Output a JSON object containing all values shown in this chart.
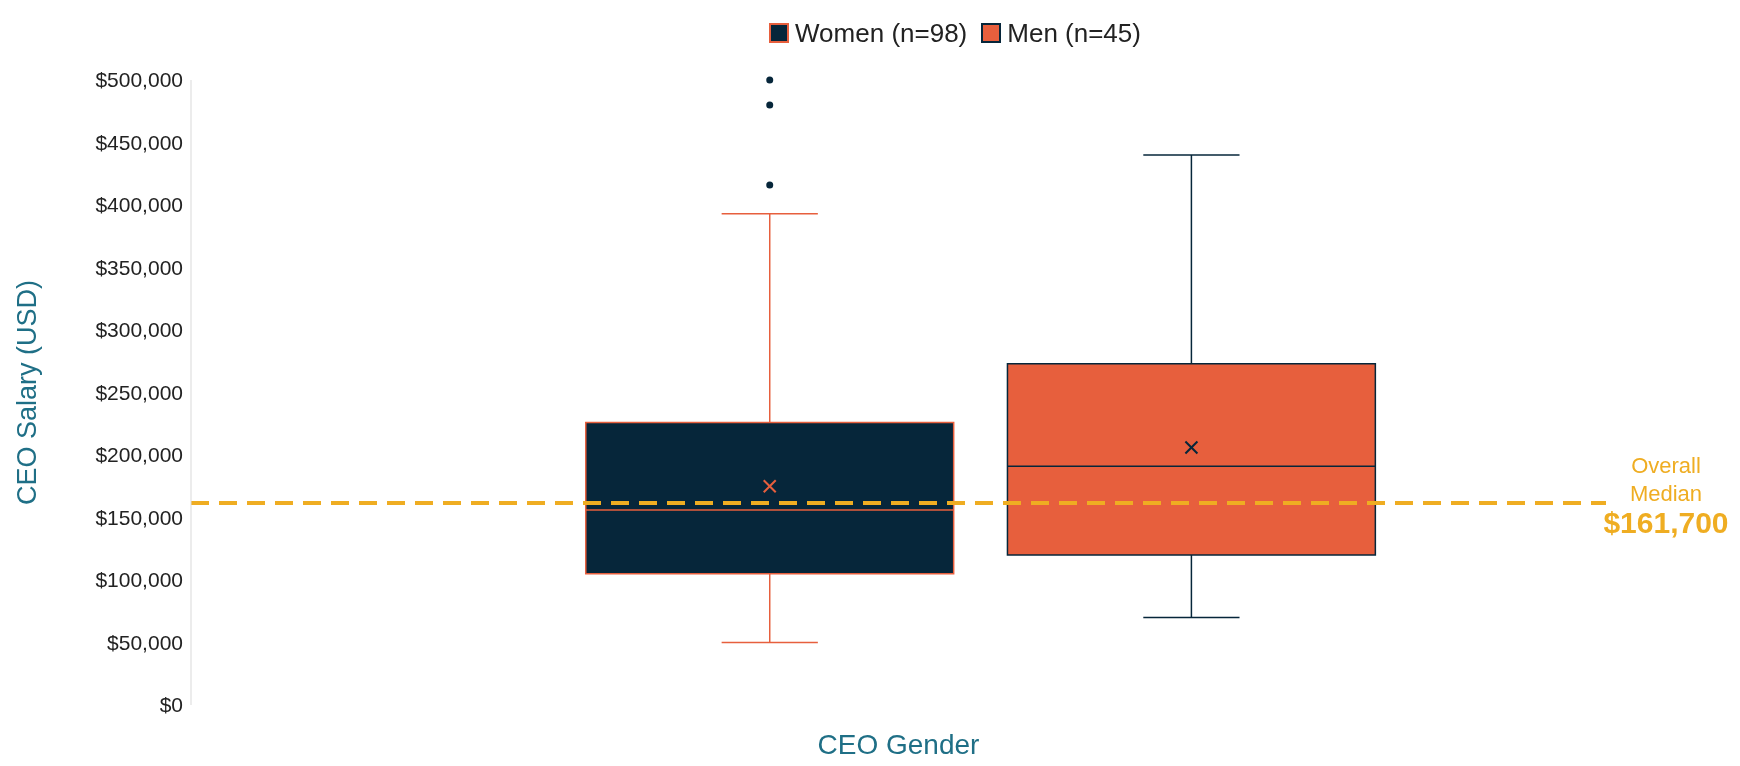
{
  "chart_data": {
    "type": "box",
    "xlabel": "CEO Gender",
    "ylabel": "CEO Salary (USD)",
    "categories": [
      null
    ],
    "series": [
      {
        "name": "Women (n=98)",
        "color": "#06263a",
        "boxes": [
          {
            "low": 50000,
            "q1": 105000,
            "median": 156000,
            "q3": 226000,
            "high": 393000,
            "mean": 175000,
            "outliers": [
              500000,
              480000,
              416000
            ]
          }
        ]
      },
      {
        "name": "Men (n=45)",
        "color": "#e75f3d",
        "boxes": [
          {
            "low": 70000,
            "q1": 120000,
            "median": 191000,
            "q3": 273000,
            "high": 440000,
            "mean": 206000
          }
        ]
      }
    ],
    "ylim": [
      0,
      500000
    ],
    "yticks": [
      {
        "value": 0,
        "label": "$0"
      },
      {
        "value": 50000,
        "label": "$50,000"
      },
      {
        "value": 100000,
        "label": "$100,000"
      },
      {
        "value": 150000,
        "label": "$150,000"
      },
      {
        "value": 200000,
        "label": "$200,000"
      },
      {
        "value": 250000,
        "label": "$250,000"
      },
      {
        "value": 300000,
        "label": "$300,000"
      },
      {
        "value": 350000,
        "label": "$350,000"
      },
      {
        "value": 400000,
        "label": "$400,000"
      },
      {
        "value": 450000,
        "label": "$450,000"
      },
      {
        "value": 500000,
        "label": "$500,000"
      }
    ],
    "ref_lines": [
      {
        "axis": "y",
        "value": 161700,
        "label": "Overall Median $161,700",
        "color": "#efad22",
        "line_style": "dashed"
      }
    ],
    "legend": "top",
    "tick_labels": "y"
  }
}
